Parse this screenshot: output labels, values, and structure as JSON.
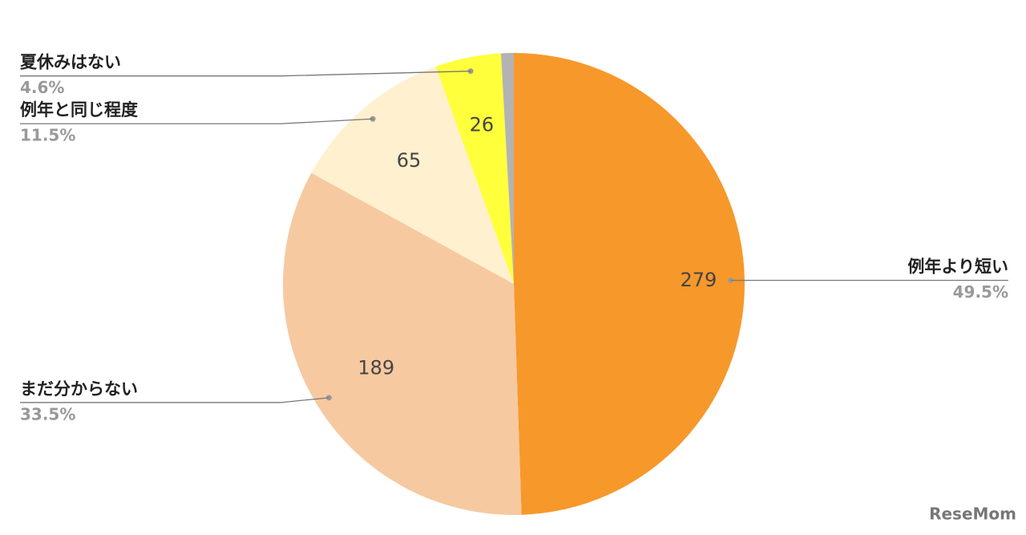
{
  "chart_data": {
    "type": "pie",
    "categories": [
      "例年より短い",
      "まだ分からない",
      "例年と同じ程度",
      "夏休みはない",
      null
    ],
    "values": [
      279,
      189,
      65,
      26,
      5
    ],
    "percent_labels": [
      "49.5%",
      "33.5%",
      "11.5%",
      "4.6%",
      null
    ],
    "colors": [
      "#f7982a",
      "#f6c9a0",
      "#fff0cf",
      "#ffff3c",
      "#b3b3b3"
    ],
    "value_labels_shown": [
      true,
      true,
      true,
      true,
      false
    ]
  },
  "watermark": "ReseMom"
}
